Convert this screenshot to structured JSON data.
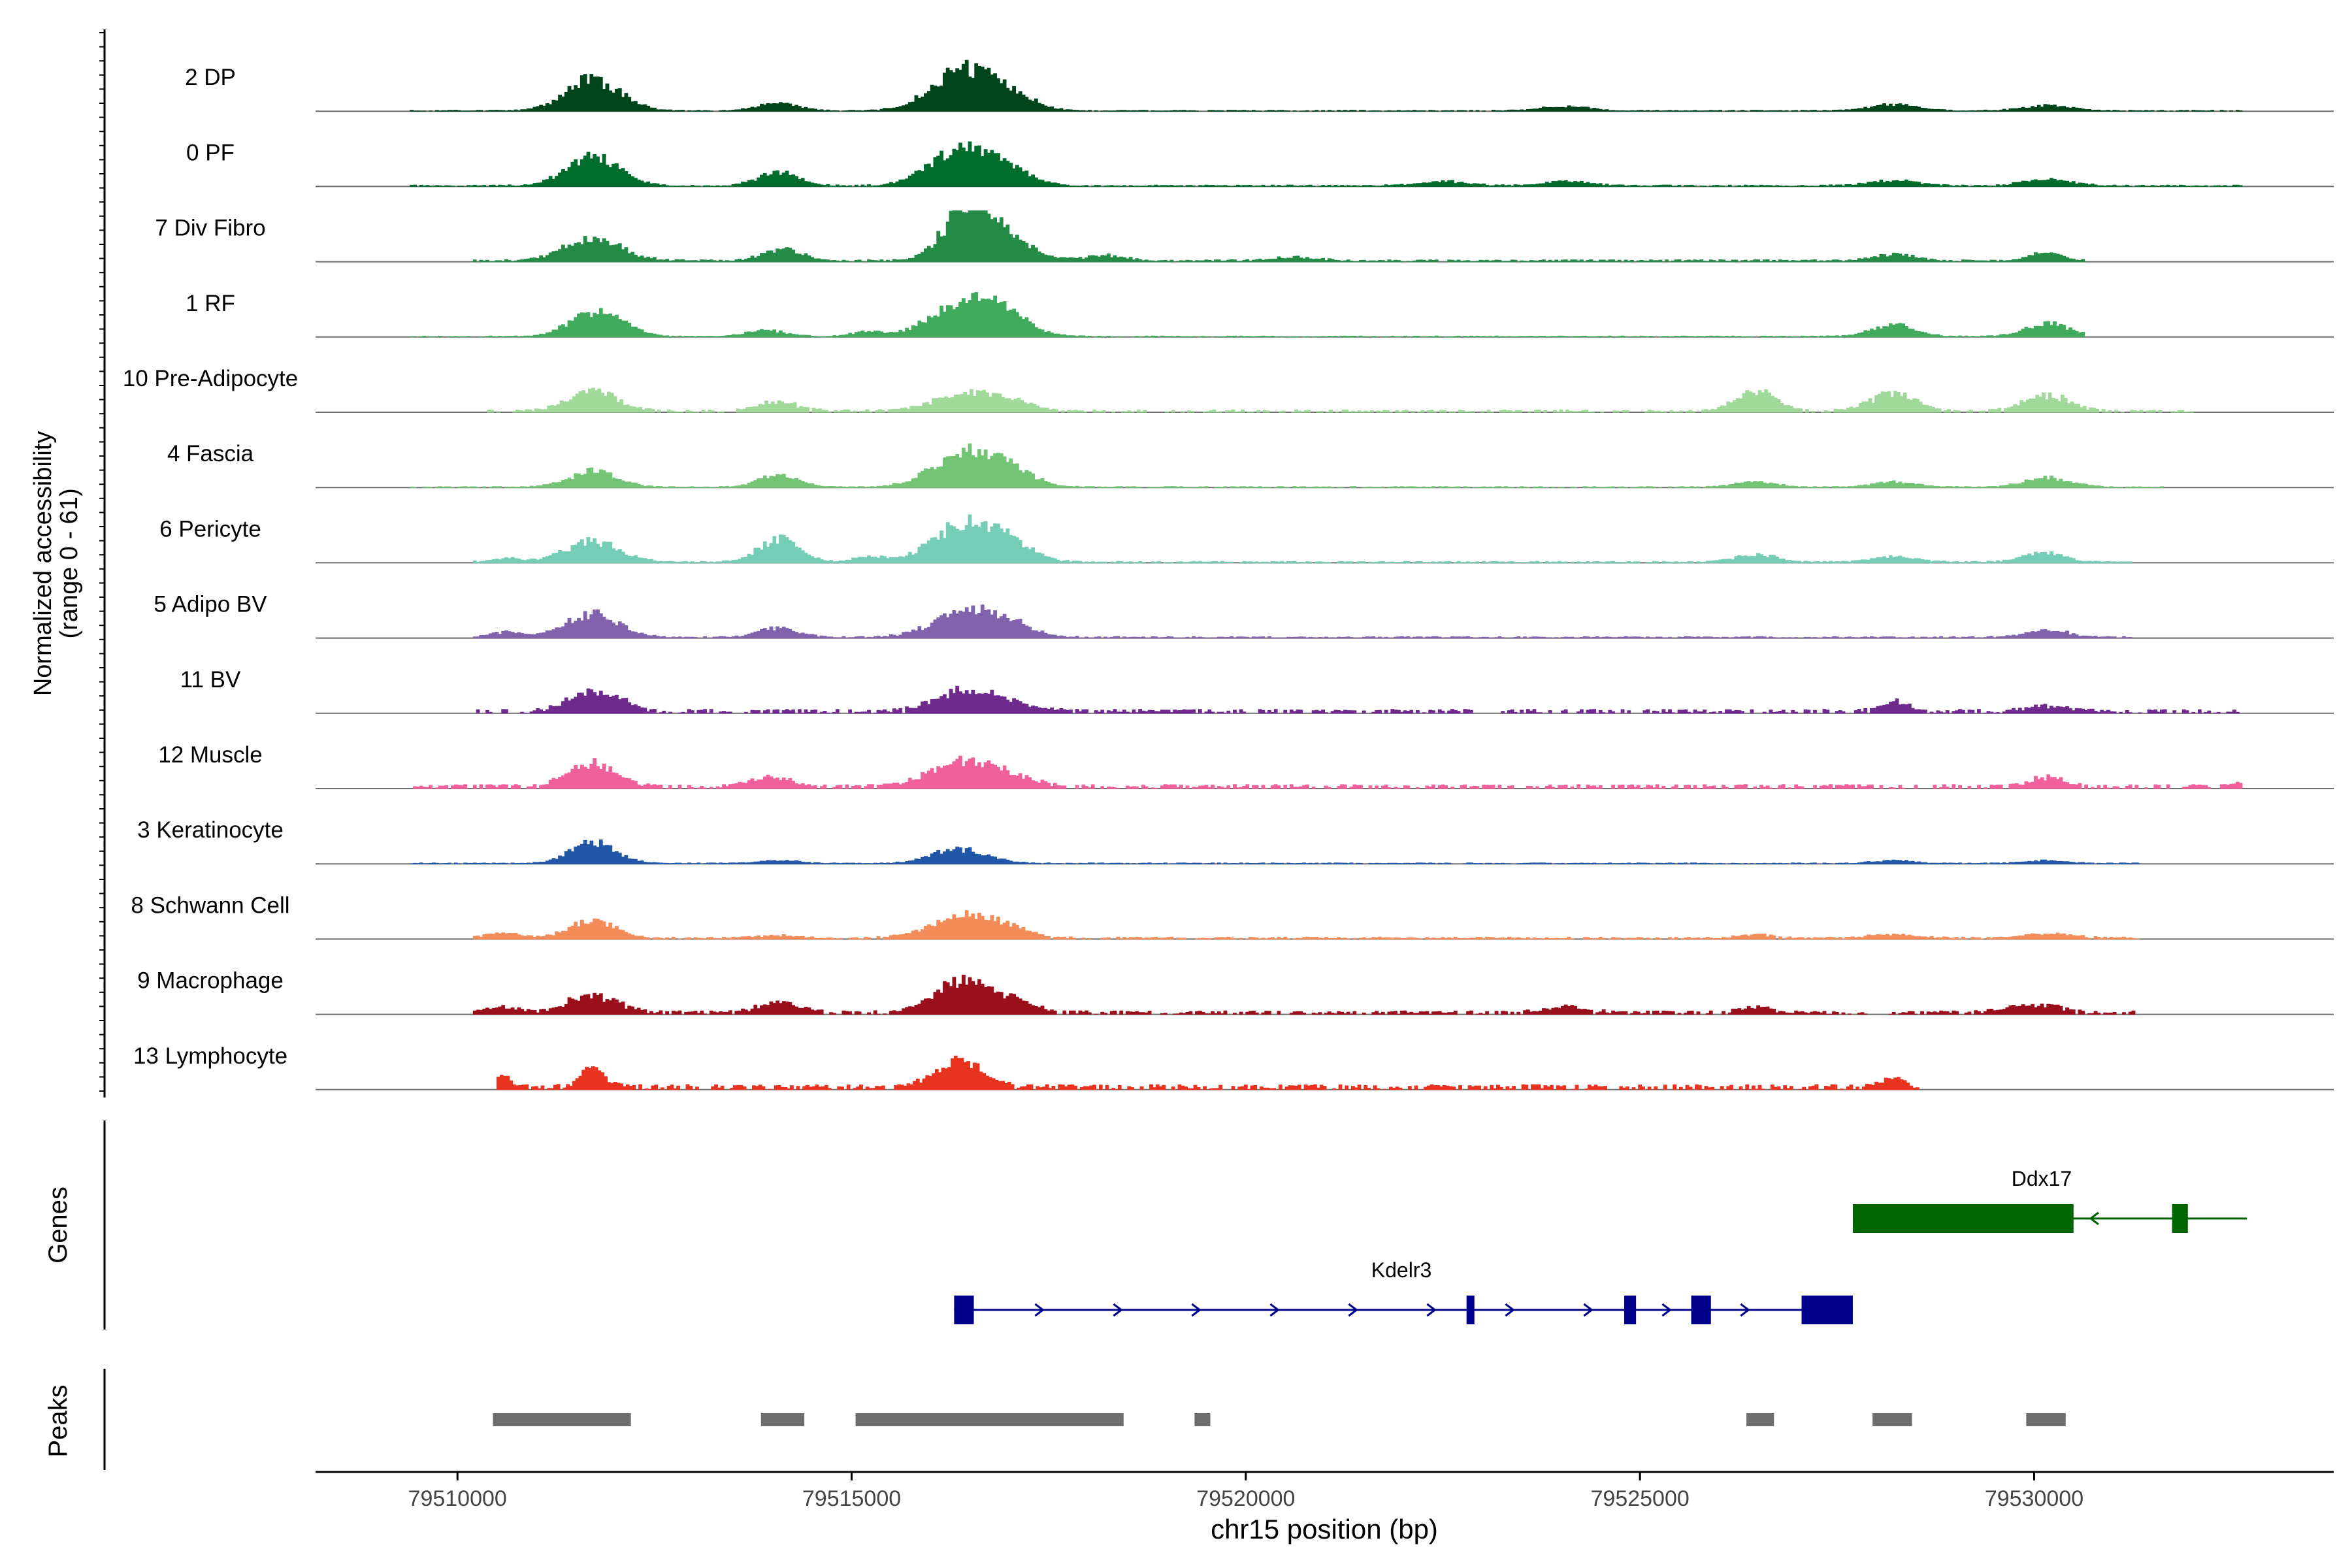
{
  "chart_data": {
    "type": "area",
    "title": "",
    "ylabel_line1": "Normalized accessibility",
    "ylabel_line2": "(range 0 - 61)",
    "y_range": [
      0,
      61
    ],
    "xlabel": "chr15 position (bp)",
    "xlim": [
      79508200,
      79533800
    ],
    "x_ticks": [
      79510000,
      79515000,
      79520000,
      79525000,
      79530000
    ],
    "x_tick_labels": [
      "79510000",
      "79515000",
      "79520000",
      "79525000",
      "79530000"
    ],
    "genes_label": "Genes",
    "peaks_label": "Peaks",
    "tracks": [
      {
        "name": "2 DP",
        "color": "#00441b",
        "peaks": [
          [
            79511700,
            0.6,
            340
          ],
          [
            79514050,
            0.15,
            250
          ],
          [
            79516350,
            0.7,
            380
          ],
          [
            79516900,
            0.35,
            330
          ],
          [
            79524050,
            0.08,
            300
          ],
          [
            79528200,
            0.12,
            300
          ],
          [
            79530150,
            0.1,
            300
          ]
        ],
        "noise": 0.02,
        "start": 79509400,
        "end": 79532600,
        "gap": 0
      },
      {
        "name": "0 PF",
        "color": "#006d2c",
        "peaks": [
          [
            79511700,
            0.55,
            330
          ],
          [
            79514050,
            0.25,
            250
          ],
          [
            79516350,
            0.65,
            380
          ],
          [
            79516900,
            0.3,
            330
          ],
          [
            79522500,
            0.08,
            300
          ],
          [
            79524050,
            0.08,
            300
          ],
          [
            79528200,
            0.1,
            300
          ],
          [
            79530150,
            0.12,
            300
          ]
        ],
        "noise": 0.03,
        "start": 79509400,
        "end": 79532600,
        "gap": 0
      },
      {
        "name": "7 Div Fibro",
        "color": "#238b45",
        "peaks": [
          [
            79511700,
            0.45,
            350
          ],
          [
            79514100,
            0.22,
            260
          ],
          [
            79516450,
            0.95,
            300
          ],
          [
            79516900,
            0.45,
            330
          ],
          [
            79518200,
            0.1,
            250
          ],
          [
            79520600,
            0.06,
            300
          ],
          [
            79528200,
            0.12,
            250
          ],
          [
            79530100,
            0.15,
            200
          ]
        ],
        "noise": 0.04,
        "start": 79510200,
        "end": 79530600,
        "gap": 0
      },
      {
        "name": "1 RF",
        "color": "#41ab5d",
        "peaks": [
          [
            79511700,
            0.45,
            300
          ],
          [
            79512100,
            0.14,
            200
          ],
          [
            79513900,
            0.12,
            250
          ],
          [
            79515200,
            0.1,
            200
          ],
          [
            79516350,
            0.6,
            380
          ],
          [
            79516900,
            0.4,
            330
          ],
          [
            79528200,
            0.22,
            280
          ],
          [
            79530150,
            0.25,
            280
          ]
        ],
        "noise": 0.02,
        "start": 79509400,
        "end": 79530600,
        "gap": 0
      },
      {
        "name": "10 Pre-Adipocyte",
        "color": "#a1d99b",
        "peaks": [
          [
            79511700,
            0.4,
            300
          ],
          [
            79514050,
            0.18,
            250
          ],
          [
            79516350,
            0.3,
            380
          ],
          [
            79516900,
            0.2,
            330
          ],
          [
            79526450,
            0.4,
            250
          ],
          [
            79528200,
            0.35,
            280
          ],
          [
            79530150,
            0.3,
            280
          ]
        ],
        "noise": 0.05,
        "start": 79510300,
        "end": 79532100,
        "gap": 0.35
      },
      {
        "name": "4 Fascia",
        "color": "#74c476",
        "peaks": [
          [
            79511700,
            0.3,
            300
          ],
          [
            79514050,
            0.22,
            260
          ],
          [
            79516350,
            0.55,
            380
          ],
          [
            79516900,
            0.38,
            330
          ],
          [
            79526450,
            0.1,
            250
          ],
          [
            79528200,
            0.1,
            280
          ],
          [
            79530150,
            0.18,
            280
          ]
        ],
        "noise": 0.02,
        "start": 79509400,
        "end": 79531600,
        "gap": 0
      },
      {
        "name": "6 Pericyte",
        "color": "#76cdb6",
        "peaks": [
          [
            79510600,
            0.07,
            200
          ],
          [
            79511700,
            0.4,
            330
          ],
          [
            79514050,
            0.45,
            250
          ],
          [
            79515200,
            0.1,
            200
          ],
          [
            79516350,
            0.65,
            380
          ],
          [
            79516900,
            0.4,
            330
          ],
          [
            79526450,
            0.15,
            250
          ],
          [
            79528200,
            0.1,
            280
          ],
          [
            79530100,
            0.18,
            250
          ]
        ],
        "noise": 0.03,
        "start": 79510200,
        "end": 79531200,
        "gap": 0
      },
      {
        "name": "5 Adipo BV",
        "color": "#8062ad",
        "peaks": [
          [
            79510600,
            0.1,
            200
          ],
          [
            79511700,
            0.45,
            330
          ],
          [
            79514050,
            0.18,
            250
          ],
          [
            79516350,
            0.42,
            380
          ],
          [
            79516900,
            0.28,
            330
          ],
          [
            79530150,
            0.14,
            280
          ]
        ],
        "noise": 0.03,
        "start": 79510200,
        "end": 79531200,
        "gap": 0
      },
      {
        "name": "11 BV",
        "color": "#6f2a8e",
        "peaks": [
          [
            79511600,
            0.3,
            250
          ],
          [
            79512000,
            0.22,
            200
          ],
          [
            79516350,
            0.35,
            330
          ],
          [
            79516900,
            0.2,
            330
          ],
          [
            79528200,
            0.22,
            160
          ],
          [
            79530150,
            0.1,
            250
          ]
        ],
        "noise": 0.08,
        "start": 79510200,
        "end": 79532600,
        "gap": 0.5
      },
      {
        "name": "12 Muscle",
        "color": "#f0609b",
        "peaks": [
          [
            79511700,
            0.45,
            300
          ],
          [
            79513950,
            0.18,
            250
          ],
          [
            79516350,
            0.45,
            380
          ],
          [
            79516900,
            0.2,
            330
          ],
          [
            79530150,
            0.18,
            200
          ],
          [
            79532600,
            0.08,
            150
          ]
        ],
        "noise": 0.08,
        "start": 79509400,
        "end": 79532600,
        "gap": 0.5
      },
      {
        "name": "3 Keratinocyte",
        "color": "#2057a6",
        "peaks": [
          [
            79511700,
            0.4,
            280
          ],
          [
            79514050,
            0.06,
            250
          ],
          [
            79516350,
            0.28,
            330
          ],
          [
            79528200,
            0.06,
            250
          ],
          [
            79530150,
            0.05,
            250
          ]
        ],
        "noise": 0.02,
        "start": 79509400,
        "end": 79531300,
        "gap": 0
      },
      {
        "name": "8 Schwann Cell",
        "color": "#f48c5a",
        "peaks": [
          [
            79510550,
            0.1,
            200
          ],
          [
            79511700,
            0.32,
            300
          ],
          [
            79514050,
            0.06,
            250
          ],
          [
            79516350,
            0.38,
            380
          ],
          [
            79516900,
            0.18,
            330
          ],
          [
            79526450,
            0.06,
            250
          ],
          [
            79528200,
            0.08,
            280
          ],
          [
            79530150,
            0.1,
            280
          ]
        ],
        "noise": 0.04,
        "start": 79510200,
        "end": 79531300,
        "gap": 0.1
      },
      {
        "name": "9 Macrophage",
        "color": "#990f1b",
        "peaks": [
          [
            79510550,
            0.1,
            200
          ],
          [
            79511700,
            0.35,
            300
          ],
          [
            79514050,
            0.2,
            250
          ],
          [
            79516350,
            0.55,
            330
          ],
          [
            79516900,
            0.25,
            330
          ],
          [
            79524050,
            0.12,
            250
          ],
          [
            79526450,
            0.1,
            200
          ],
          [
            79529700,
            0.1,
            200
          ],
          [
            79530150,
            0.14,
            200
          ]
        ],
        "noise": 0.07,
        "start": 79510200,
        "end": 79531300,
        "gap": 0.35
      },
      {
        "name": "13 Lymphocyte",
        "color": "#e8331f",
        "peaks": [
          [
            79510550,
            0.18,
            100
          ],
          [
            79511700,
            0.35,
            150
          ],
          [
            79516350,
            0.5,
            300
          ],
          [
            79528200,
            0.16,
            150
          ]
        ],
        "noise": 0.1,
        "start": 79510500,
        "end": 79528500,
        "gap": 0.65
      }
    ],
    "genes": [
      {
        "name": "Kdelr3",
        "color": "#00008b",
        "strand": "+",
        "start": 79516300,
        "end": 79527700,
        "exons": [
          [
            79516300,
            79516550
          ],
          [
            79522800,
            79522900
          ],
          [
            79524800,
            79524950
          ],
          [
            79525650,
            79525900
          ],
          [
            79527050,
            79527700
          ]
        ]
      },
      {
        "name": "Ddx17",
        "color": "#006400",
        "strand": "-",
        "start": 79527700,
        "end": 79532700,
        "exons": [
          [
            79527700,
            79530500
          ],
          [
            79531750,
            79531950
          ]
        ]
      }
    ],
    "peaks": [
      [
        79510450,
        79512200
      ],
      [
        79513850,
        79514400
      ],
      [
        79515050,
        79518450
      ],
      [
        79519350,
        79519550
      ],
      [
        79526350,
        79526700
      ],
      [
        79527950,
        79528450
      ],
      [
        79529900,
        79530400
      ]
    ]
  }
}
